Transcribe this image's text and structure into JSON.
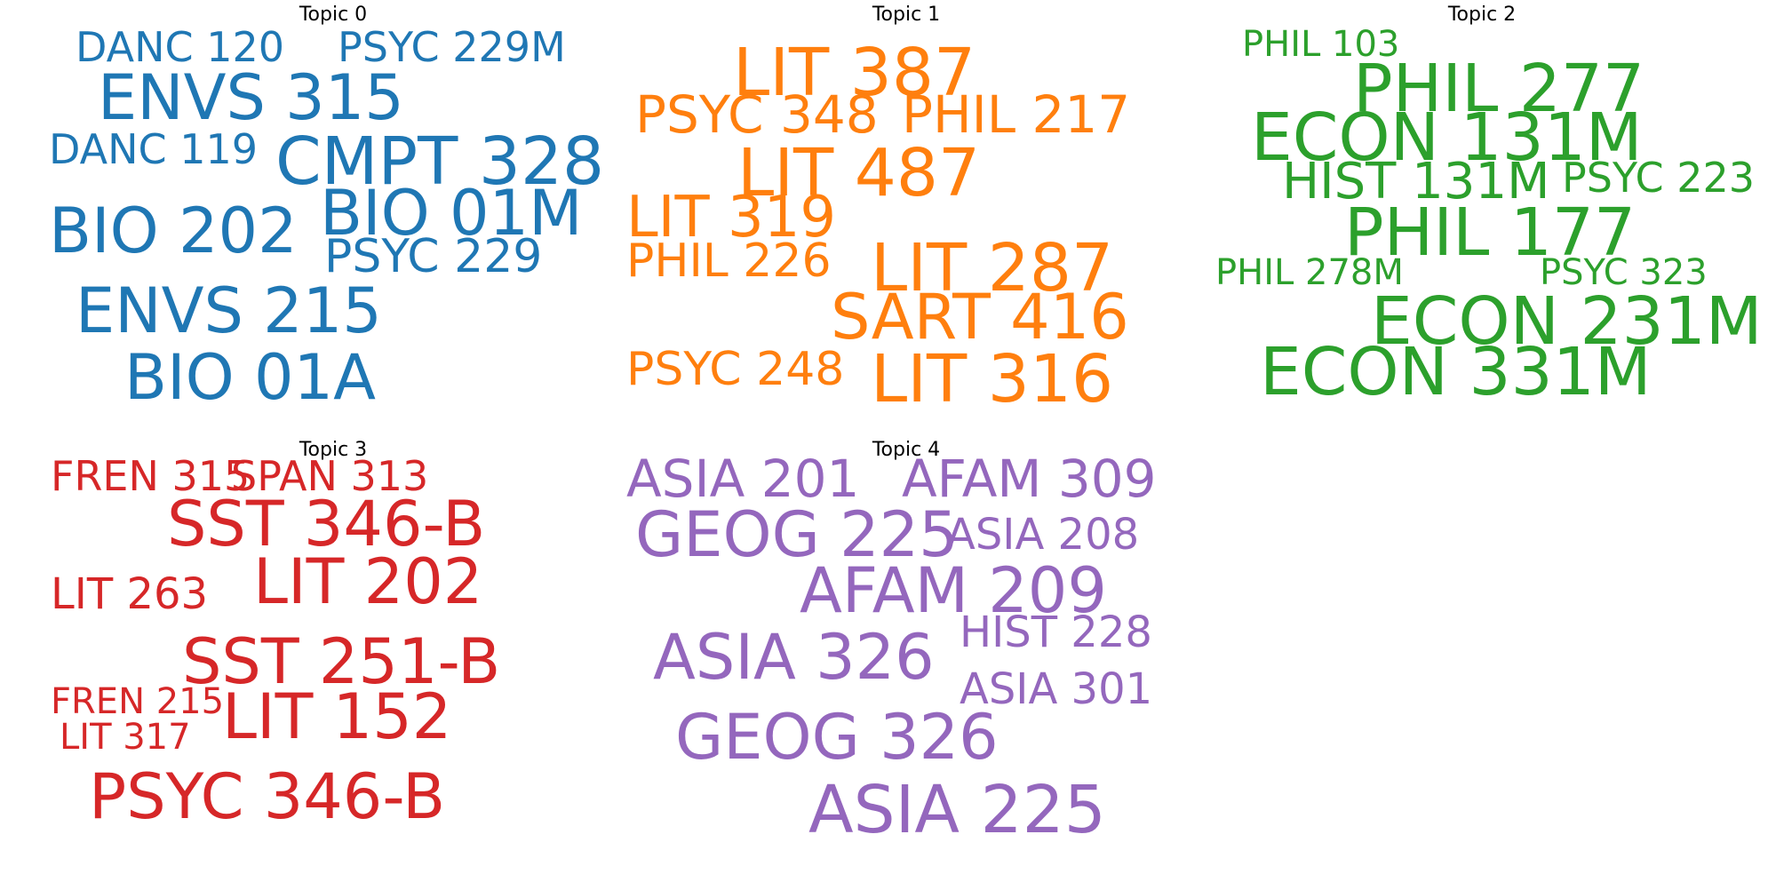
{
  "topics": [
    {
      "title": "Topic 0",
      "color": "#1f77b4",
      "words": [
        "DANC 120",
        "PSYC 229M",
        "ENVS 315",
        "DANC 119",
        "CMPT 328",
        "BIO 01M",
        "BIO 202",
        "PSYC 229",
        "ENVS 215",
        "BIO 01A"
      ]
    },
    {
      "title": "Topic 1",
      "color": "#ff7f0e",
      "words": [
        "LIT 387",
        "PSYC 348",
        "PHIL 217",
        "LIT 487",
        "LIT 319",
        "PHIL 226",
        "LIT 287",
        "SART 416",
        "PSYC 248",
        "LIT 316"
      ]
    },
    {
      "title": "Topic 2",
      "color": "#2ca02c",
      "words": [
        "PHIL 103",
        "PHIL 277",
        "ECON 131M",
        "HIST 131M",
        "PSYC 223",
        "PHIL 177",
        "PHIL 278M",
        "PSYC 323",
        "ECON 231M",
        "ECON 331M"
      ]
    },
    {
      "title": "Topic 3",
      "color": "#d62728",
      "words": [
        "FREN 315",
        "SPAN 313",
        "SST 346-B",
        "LIT 263",
        "LIT 202",
        "SST 251-B",
        "FREN 215",
        "LIT 152",
        "LIT 317",
        "PSYC 346-B"
      ]
    },
    {
      "title": "Topic 4",
      "color": "#9467bd",
      "words": [
        "ASIA 201",
        "AFAM 309",
        "GEOG 225",
        "ASIA 208",
        "AFAM 209",
        "HIST 228",
        "ASIA 326",
        "ASIA 301",
        "GEOG 326",
        "ASIA 225"
      ]
    }
  ]
}
